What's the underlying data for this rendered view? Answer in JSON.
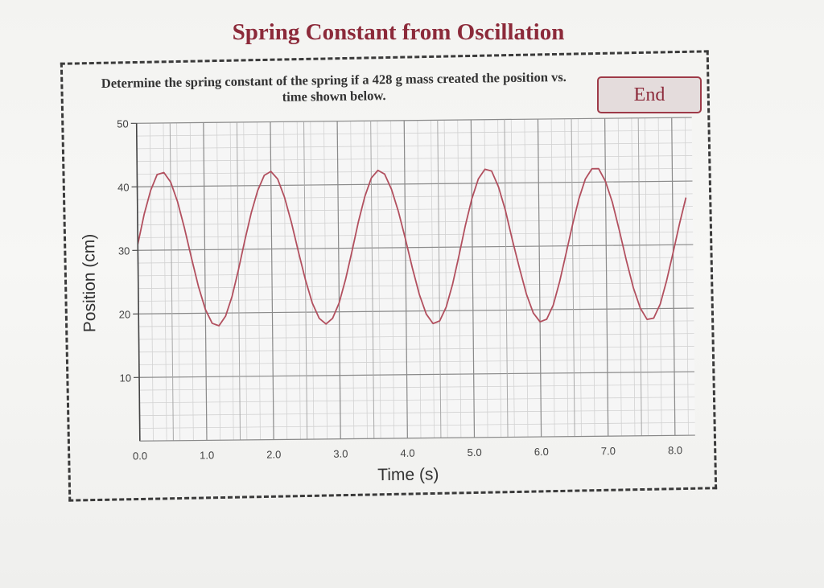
{
  "page": {
    "title": "Spring Constant from Oscillation",
    "question": "Determine the spring constant of the spring if a 428 g mass created the position vs. time shown below.",
    "end_button_label": "End"
  },
  "colors": {
    "title": "#8c2a3a",
    "curve": "#b2505f",
    "major_grid": "#8a8a8a",
    "minor_grid": "#d2d2d2"
  },
  "chart_data": {
    "type": "line",
    "title": "",
    "xlabel": "Time (s)",
    "ylabel": "Position (cm)",
    "xlim": [
      0,
      8.3
    ],
    "ylim": [
      0,
      50
    ],
    "x_ticks": [
      0,
      1,
      2,
      3,
      4,
      5,
      6,
      7,
      8
    ],
    "x_tick_labels": [
      "0.0",
      "1.0",
      "2.0",
      "3.0",
      "4.0",
      "5.0",
      "6.0",
      "7.0",
      "8.0"
    ],
    "y_ticks": [
      10,
      20,
      30,
      40,
      50
    ],
    "y_tick_labels": [
      "10",
      "20",
      "30",
      "40",
      "50"
    ],
    "grid": true,
    "series": [
      {
        "x": [
          0.0,
          0.1,
          0.2,
          0.3,
          0.4,
          0.5,
          0.6,
          0.7,
          0.8,
          0.9,
          1.0,
          1.1,
          1.2,
          1.3,
          1.4,
          1.5,
          1.6,
          1.7,
          1.8,
          1.9,
          2.0,
          2.1,
          2.2,
          2.3,
          2.4,
          2.5,
          2.6,
          2.7,
          2.8,
          2.9,
          3.0,
          3.1,
          3.2,
          3.3,
          3.4,
          3.5,
          3.6,
          3.7,
          3.8,
          3.9,
          4.0,
          4.1,
          4.2,
          4.3,
          4.4,
          4.5,
          4.6,
          4.7,
          4.8,
          4.9,
          5.0,
          5.1,
          5.2,
          5.3,
          5.4,
          5.5,
          5.6,
          5.7,
          5.8,
          5.9,
          6.0,
          6.1,
          6.2,
          6.3,
          6.4,
          6.5,
          6.6,
          6.7,
          6.8,
          6.9,
          7.0,
          7.1,
          7.2,
          7.3,
          7.4,
          7.5,
          7.6,
          7.7,
          7.8,
          7.9,
          8.0,
          8.1,
          8.2
        ],
        "y": [
          31.0,
          35.7,
          39.4,
          41.9,
          42.2,
          40.7,
          37.6,
          33.4,
          28.7,
          24.2,
          20.6,
          18.4,
          18.0,
          19.5,
          22.6,
          26.8,
          31.4,
          35.7,
          39.2,
          41.6,
          42.2,
          41.0,
          38.1,
          34.1,
          29.5,
          25.1,
          21.4,
          19.0,
          18.1,
          19.0,
          21.4,
          25.1,
          29.5,
          34.1,
          38.1,
          41.0,
          42.2,
          41.6,
          39.2,
          35.7,
          31.4,
          26.8,
          22.6,
          19.5,
          18.0,
          18.4,
          20.6,
          24.2,
          28.7,
          33.4,
          37.6,
          40.7,
          42.2,
          41.9,
          39.4,
          35.7,
          31.0,
          26.6,
          22.5,
          19.5,
          18.1,
          18.5,
          20.7,
          24.4,
          28.8,
          33.3,
          37.4,
          40.5,
          42.1,
          42.1,
          40.1,
          36.8,
          32.3,
          27.6,
          23.3,
          20.1,
          18.3,
          18.5,
          20.7,
          24.4,
          28.8,
          33.3,
          37.4
        ]
      }
    ]
  }
}
